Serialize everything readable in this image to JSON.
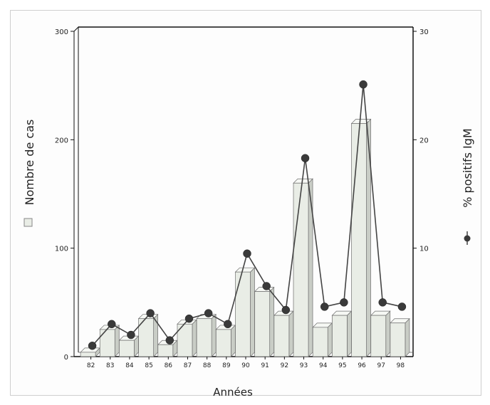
{
  "chart_data": {
    "type": "bar",
    "categories": [
      "82",
      "83",
      "84",
      "85",
      "86",
      "87",
      "88",
      "89",
      "90",
      "91",
      "92",
      "93",
      "94",
      "95",
      "96",
      "97",
      "98"
    ],
    "xlabel": "Années",
    "series": [
      {
        "name": "Nombre de cas",
        "type": "bar",
        "axis": "left",
        "values": [
          4,
          25,
          15,
          35,
          11,
          30,
          35,
          25,
          78,
          60,
          38,
          160,
          27,
          38,
          215,
          38,
          31
        ]
      },
      {
        "name": "% positifs IgM",
        "type": "line",
        "axis": "right",
        "values": [
          1,
          3,
          2,
          4,
          1.5,
          3.5,
          4,
          3,
          9.5,
          6.5,
          4.3,
          18.3,
          4.6,
          5,
          25.1,
          5,
          4.6
        ]
      }
    ],
    "y_left": {
      "label": "Nombre de cas",
      "ylim": [
        0,
        300
      ],
      "ticks": [
        "0",
        "100",
        "200",
        "300"
      ]
    },
    "y_right": {
      "label": "% positifs IgM",
      "ylim": [
        0,
        30
      ],
      "ticks": [
        "10",
        "20",
        "30"
      ]
    },
    "grid": false,
    "colors": {
      "bar_front": "#e9ede6",
      "bar_side": "#c9cdc6",
      "bar_top": "#f6f8f4",
      "bar_edge": "#6f6f6f",
      "line": "#444444",
      "marker": "#3a3a3a",
      "axis": "#111111"
    }
  }
}
